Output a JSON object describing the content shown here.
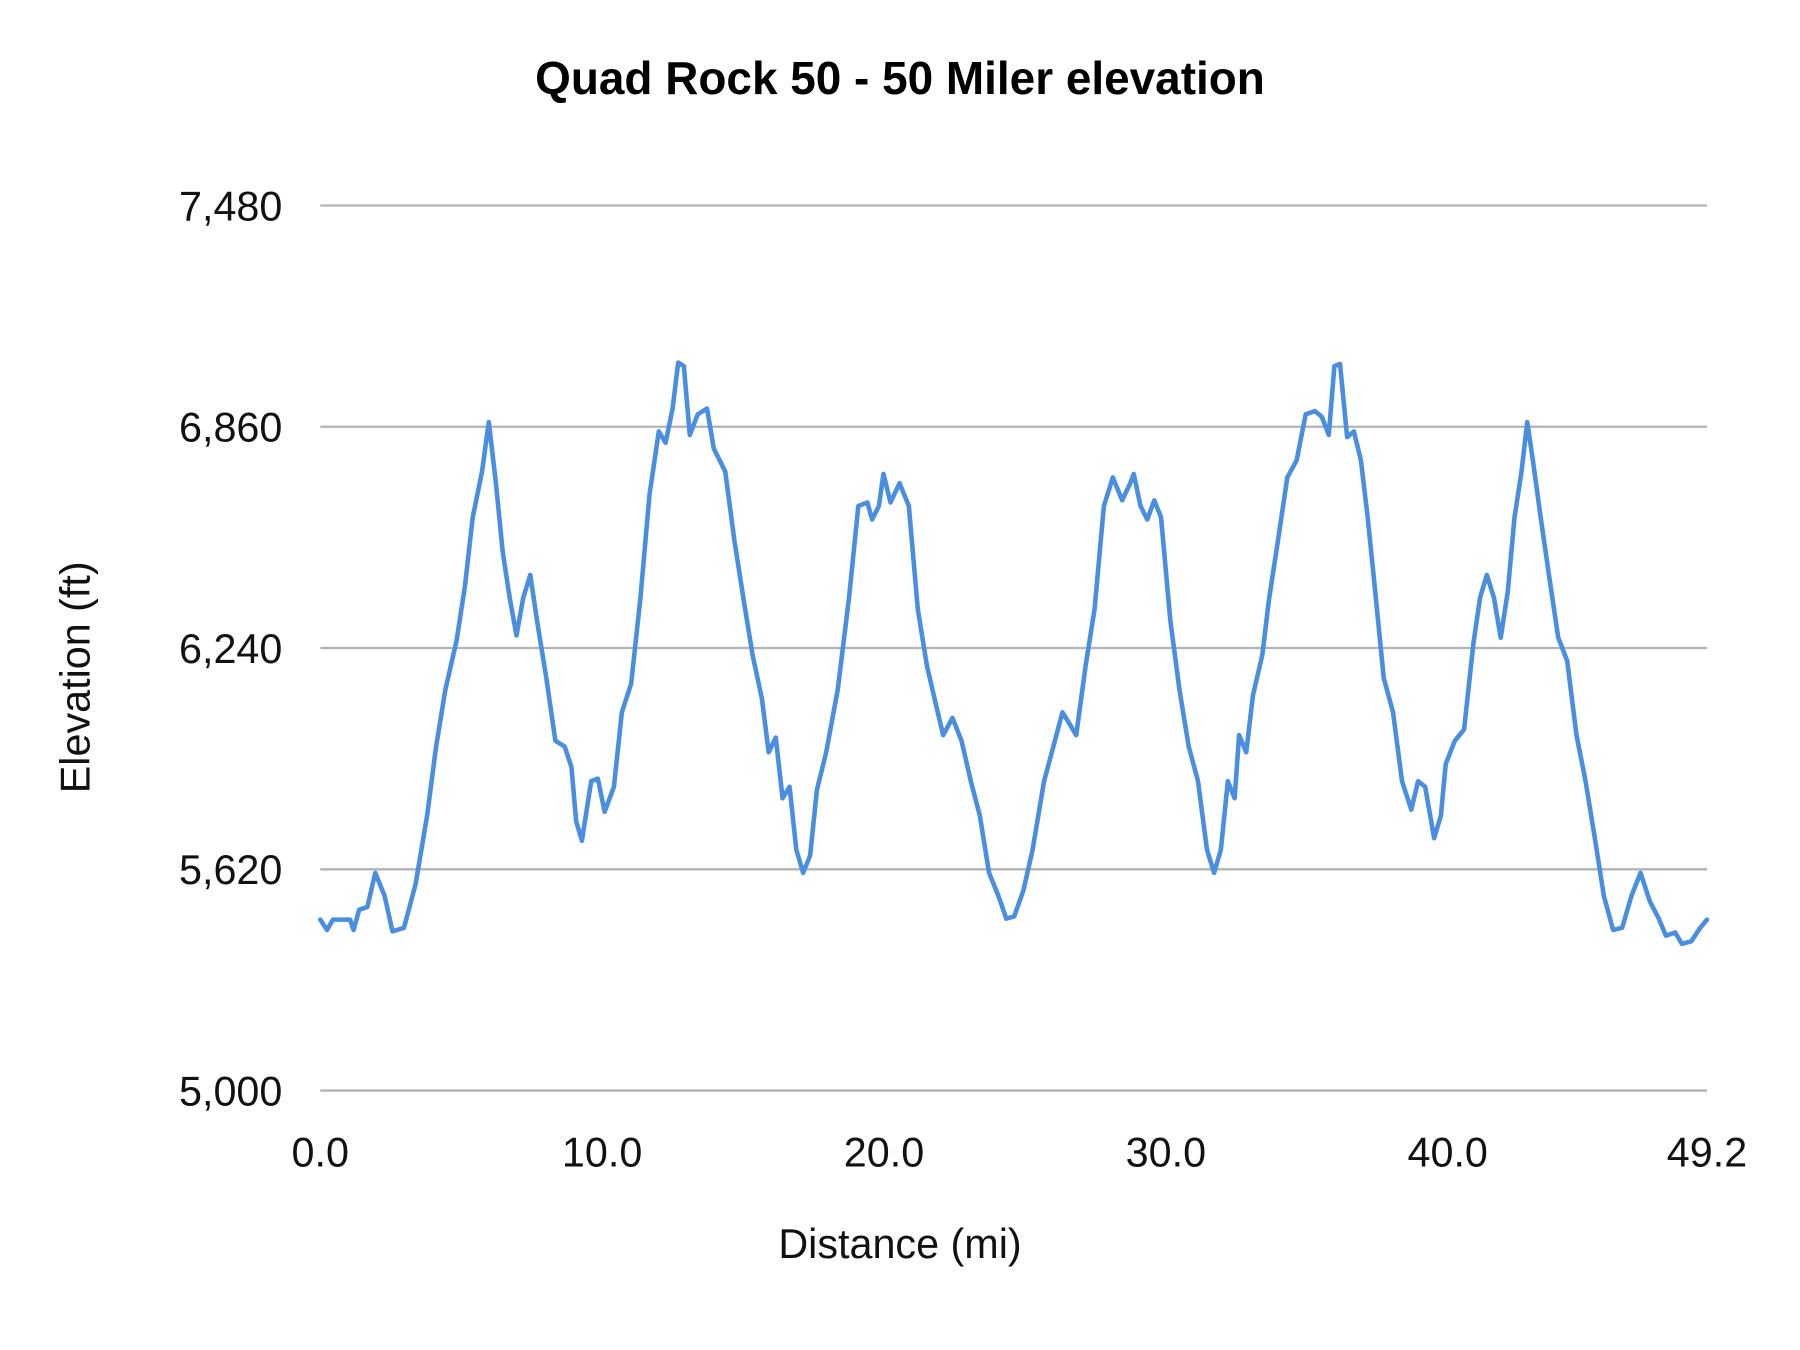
{
  "chart_data": {
    "type": "line",
    "title": "Quad Rock 50 - 50 Miler elevation",
    "xlabel": "Distance (mi)",
    "ylabel": "Elevation (ft)",
    "xlim": [
      0,
      49.2
    ],
    "ylim": [
      5000,
      7480
    ],
    "x_ticks": [
      "0.0",
      "10.0",
      "20.0",
      "30.0",
      "40.0",
      "49.2"
    ],
    "x_tick_values": [
      0,
      10,
      20,
      30,
      40,
      49.2
    ],
    "y_ticks": [
      "5,000",
      "5,620",
      "6,240",
      "6,860",
      "7,480"
    ],
    "y_tick_values": [
      5000,
      5620,
      6240,
      6860,
      7480
    ],
    "grid": "horizontal",
    "legend": "none",
    "series_color": "#4a8ee0",
    "x": [
      0,
      0.24,
      0.45,
      1.06,
      1.18,
      1.38,
      1.67,
      1.95,
      2.28,
      2.56,
      2.97,
      3.38,
      3.79,
      4.11,
      4.44,
      4.84,
      5.13,
      5.41,
      5.74,
      5.98,
      6.23,
      6.47,
      6.72,
      6.96,
      7.2,
      7.45,
      7.69,
      8.02,
      8.34,
      8.67,
      8.91,
      9.08,
      9.28,
      9.61,
      9.85,
      10.09,
      10.42,
      10.7,
      11.03,
      11.36,
      11.68,
      12.01,
      12.25,
      12.5,
      12.7,
      12.9,
      13.11,
      13.39,
      13.72,
      13.96,
      14.37,
      14.69,
      15.02,
      15.34,
      15.67,
      15.91,
      16.16,
      16.4,
      16.65,
      16.89,
      17.13,
      17.38,
      17.62,
      17.95,
      18.36,
      18.76,
      19.09,
      19.41,
      19.58,
      19.82,
      19.98,
      20.23,
      20.55,
      20.88,
      21.2,
      21.53,
      21.86,
      22.1,
      22.43,
      22.75,
      23.08,
      23.4,
      23.73,
      24.06,
      24.34,
      24.62,
      24.95,
      25.27,
      25.68,
      26.01,
      26.33,
      26.58,
      26.82,
      27.15,
      27.47,
      27.8,
      28.12,
      28.45,
      28.74,
      28.86,
      29.1,
      29.34,
      29.59,
      29.83,
      30.16,
      30.48,
      30.81,
      31.14,
      31.46,
      31.71,
      31.95,
      32.2,
      32.44,
      32.6,
      32.85,
      33.09,
      33.42,
      33.66,
      33.98,
      34.31,
      34.64,
      34.96,
      35.29,
      35.53,
      35.78,
      35.98,
      36.18,
      36.43,
      36.67,
      36.92,
      37.16,
      37.41,
      37.73,
      38.06,
      38.38,
      38.71,
      38.95,
      39.2,
      39.52,
      39.76,
      39.93,
      40.25,
      40.58,
      40.91,
      41.15,
      41.39,
      41.64,
      41.88,
      42.13,
      42.37,
      42.62,
      42.82,
      43.02,
      43.27,
      43.59,
      43.92,
      44.24,
      44.57,
      44.89,
      45.22,
      45.54,
      45.87,
      46.19,
      46.52,
      46.84,
      47.17,
      47.49,
      47.74,
      48.07,
      48.31,
      48.64,
      48.96,
      49.2
    ],
    "y": [
      5479,
      5450,
      5479,
      5479,
      5450,
      5507,
      5514,
      5610,
      5546,
      5446,
      5456,
      5578,
      5771,
      5964,
      6124,
      6262,
      6413,
      6606,
      6734,
      6873,
      6702,
      6510,
      6381,
      6275,
      6381,
      6445,
      6317,
      6156,
      5980,
      5964,
      5906,
      5755,
      5700,
      5867,
      5874,
      5781,
      5851,
      6060,
      6140,
      6381,
      6670,
      6847,
      6815,
      6911,
      7040,
      7030,
      6837,
      6895,
      6911,
      6799,
      6734,
      6542,
      6375,
      6220,
      6098,
      5948,
      5989,
      5819,
      5851,
      5675,
      5610,
      5658,
      5842,
      5948,
      6124,
      6381,
      6638,
      6648,
      6600,
      6638,
      6728,
      6648,
      6702,
      6638,
      6349,
      6188,
      6076,
      5996,
      6044,
      5980,
      5867,
      5771,
      5610,
      5546,
      5482,
      5488,
      5562,
      5675,
      5867,
      5964,
      6060,
      6028,
      5996,
      6188,
      6349,
      6638,
      6718,
      6654,
      6702,
      6728,
      6638,
      6600,
      6654,
      6606,
      6317,
      6124,
      5964,
      5867,
      5675,
      5610,
      5675,
      5867,
      5819,
      5996,
      5948,
      6108,
      6220,
      6375,
      6542,
      6718,
      6766,
      6895,
      6904,
      6888,
      6837,
      7030,
      7036,
      6831,
      6847,
      6766,
      6606,
      6413,
      6156,
      6060,
      5867,
      5787,
      5867,
      5851,
      5707,
      5771,
      5915,
      5980,
      6012,
      6253,
      6381,
      6445,
      6381,
      6269,
      6397,
      6606,
      6734,
      6873,
      6766,
      6622,
      6445,
      6269,
      6204,
      5996,
      5867,
      5707,
      5546,
      5450,
      5456,
      5546,
      5610,
      5530,
      5482,
      5434,
      5443,
      5411,
      5418,
      5456,
      5479
    ]
  }
}
